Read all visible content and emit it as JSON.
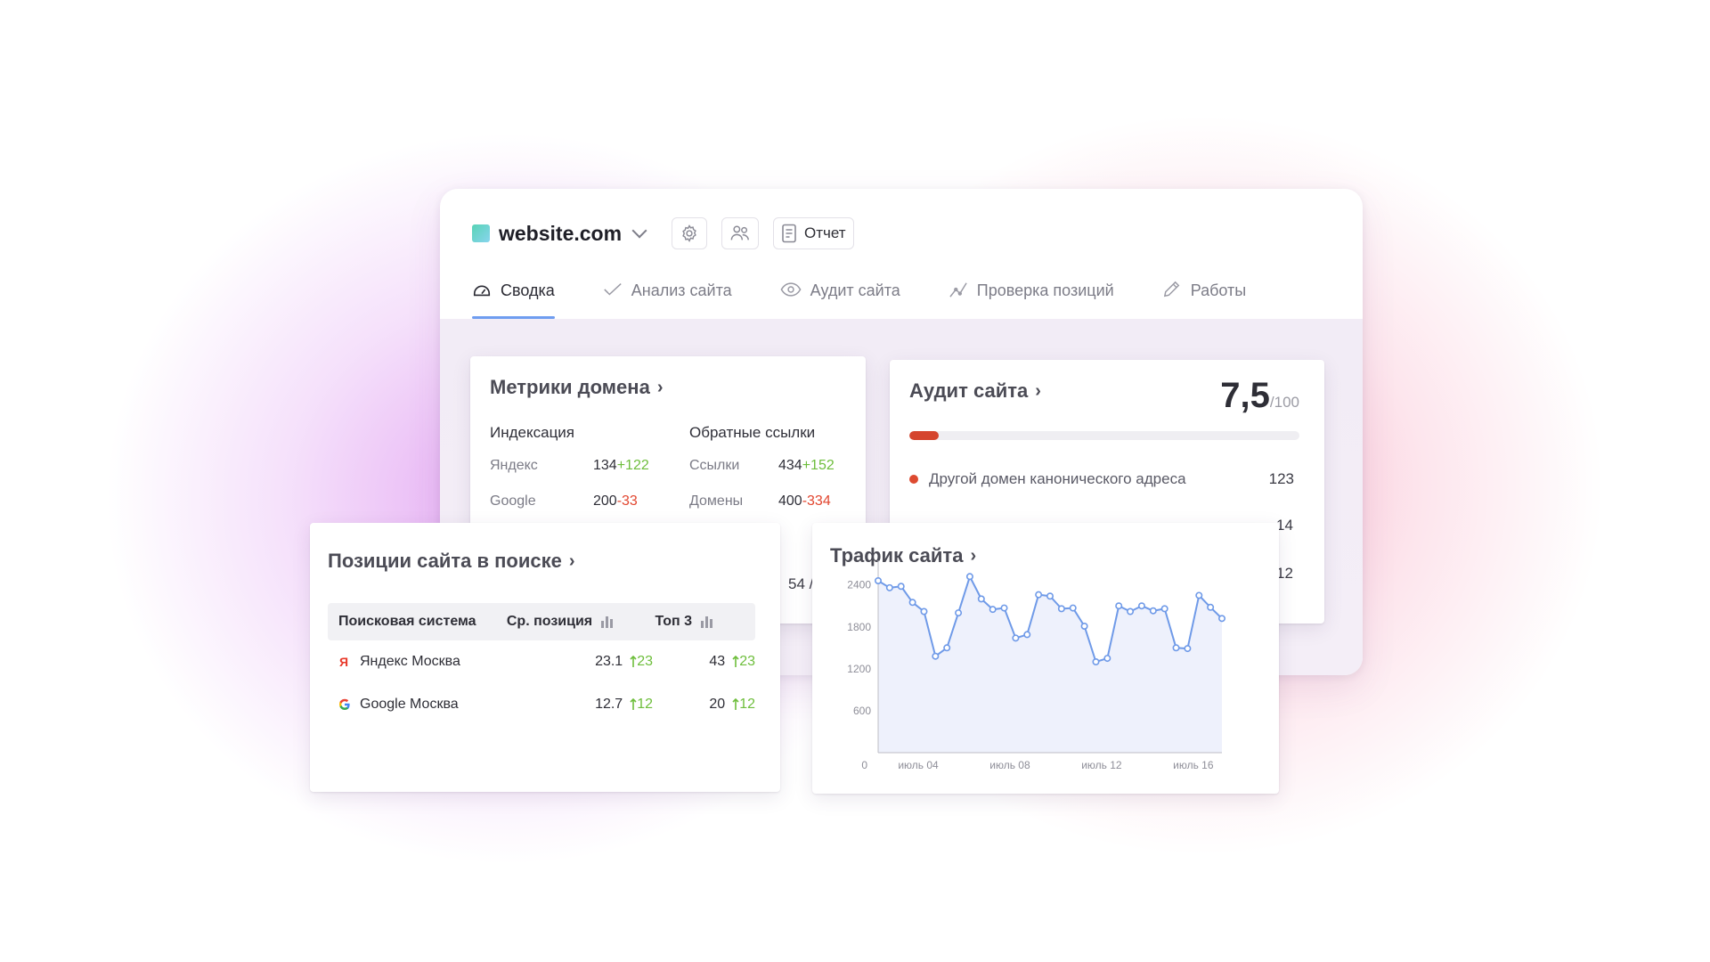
{
  "header": {
    "site": "website.com",
    "report_label": "Отчет",
    "settings_icon": "gear-icon",
    "users_icon": "users-icon"
  },
  "tabs": [
    {
      "label": "Сводка",
      "icon": "gauge-icon",
      "active": true
    },
    {
      "label": "Анализ сайта",
      "icon": "check-icon",
      "active": false
    },
    {
      "label": "Аудит сайта",
      "icon": "eye-icon",
      "active": false
    },
    {
      "label": "Проверка позиций",
      "icon": "trend-icon",
      "active": false
    },
    {
      "label": "Работы",
      "icon": "pencil-icon",
      "active": false
    }
  ],
  "metrics": {
    "title": "Метрики домена",
    "arrow": "›",
    "indexing": {
      "title": "Индексация",
      "rows": [
        {
          "label": "Яндекс",
          "value": "134",
          "delta": "+122"
        },
        {
          "label": "Google",
          "value": "200",
          "delta": "-33"
        }
      ]
    },
    "backlinks": {
      "title": "Обратные ссылки",
      "rows": [
        {
          "label": "Ссылки",
          "value": "434",
          "delta": "+152"
        },
        {
          "label": "Домены",
          "value": "400",
          "delta": "-334"
        }
      ]
    },
    "partial_value": "54 /"
  },
  "audit": {
    "title": "Аудит сайта",
    "arrow": "›",
    "score": "7,5",
    "score_max": "/100",
    "score_fraction": 0.075,
    "issue": {
      "label": "Другой домен канонического адреса",
      "count": "123"
    },
    "partial_counts": [
      "14",
      "12"
    ]
  },
  "positions": {
    "title": "Позиции сайта в поиске",
    "arrow": "›",
    "headers": {
      "engine": "Поисковая система",
      "avg": "Ср. позиция",
      "top3": "Топ 3"
    },
    "rows": [
      {
        "engine": "Яндекс Москва",
        "icon": "yandex-icon",
        "avg": "23.1",
        "avg_delta": "23",
        "top3": "43",
        "top3_delta": "23"
      },
      {
        "engine": "Google Москва",
        "icon": "google-icon",
        "avg": "12.7",
        "avg_delta": "12",
        "top3": "20",
        "top3_delta": "12"
      }
    ]
  },
  "traffic": {
    "title": "Трафик сайта",
    "arrow": "›"
  },
  "chart_data": {
    "type": "area",
    "title": "Трафик сайта",
    "y_ticks": [
      "2400",
      "1800",
      "1200",
      "600",
      "0"
    ],
    "ylim": [
      0,
      2600
    ],
    "x_tick_labels": [
      "июль 04",
      "июль 08",
      "июль 12",
      "июль 16"
    ],
    "x_tick_positions": [
      3.5,
      11.5,
      19.5,
      27.5
    ],
    "series": [
      {
        "values": [
          2460,
          2360,
          2380,
          2150,
          2020,
          1380,
          1500,
          2000,
          2520,
          2200,
          2050,
          2070,
          1640,
          1690,
          2260,
          2240,
          2060,
          2070,
          1810,
          1300,
          1350,
          2100,
          2020,
          2100,
          2030,
          2060,
          1500,
          1490,
          2250,
          2080,
          1920
        ]
      }
    ],
    "grid": false,
    "colors": {
      "line": "#6f9ae8",
      "fill": "#eef1fc",
      "marker_fill": "#ffffff"
    }
  },
  "colors": {
    "accent_blue": "#6f9df0",
    "positive": "#6ebe3c",
    "negative": "#e2462f",
    "audit_bar": "#d5452e"
  }
}
